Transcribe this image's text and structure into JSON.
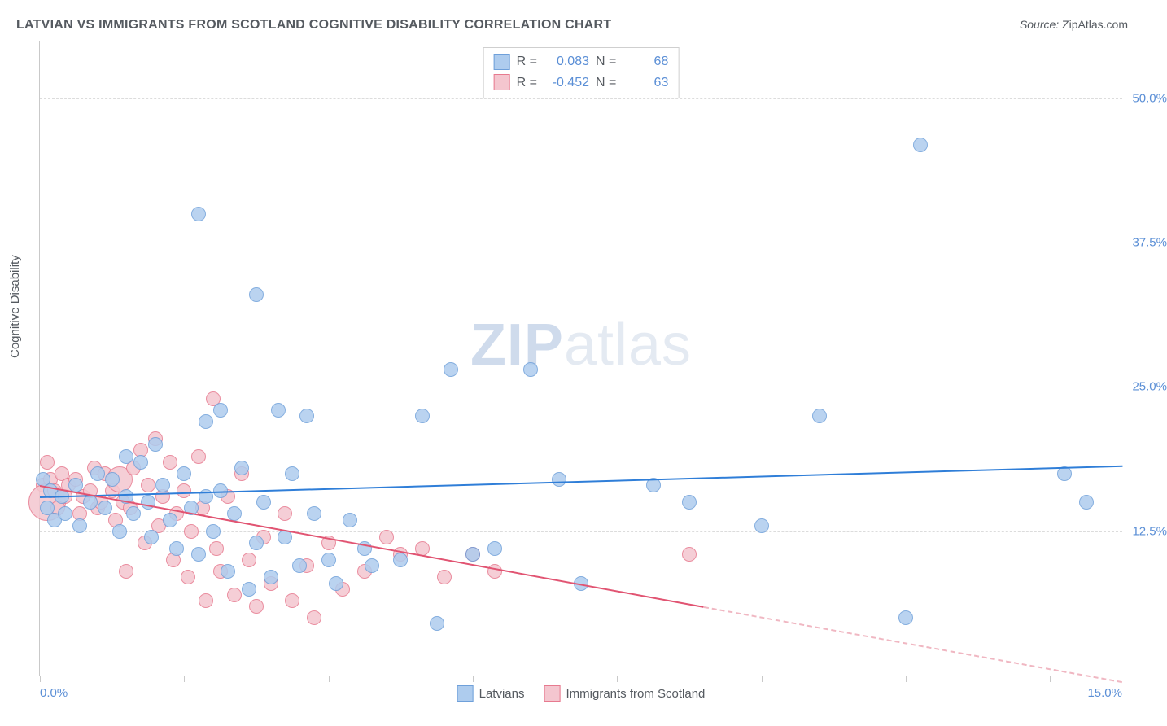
{
  "title": "LATVIAN VS IMMIGRANTS FROM SCOTLAND COGNITIVE DISABILITY CORRELATION CHART",
  "source_label": "Source:",
  "source_value": "ZipAtlas.com",
  "ylabel": "Cognitive Disability",
  "watermark_zip": "ZIP",
  "watermark_rest": "atlas",
  "chart": {
    "type": "scatter",
    "xlim": [
      0,
      15
    ],
    "ylim": [
      0,
      55
    ],
    "xtick_positions": [
      0,
      2,
      4,
      6,
      8,
      10,
      12,
      14
    ],
    "xtick_labels": {
      "0": "0.0%",
      "15": "15.0%"
    },
    "ytick_positions": [
      12.5,
      25.0,
      37.5,
      50.0
    ],
    "ytick_labels": [
      "12.5%",
      "25.0%",
      "37.5%",
      "50.0%"
    ],
    "grid_color": "#dcdcdc",
    "background_color": "#ffffff",
    "axis_color": "#c9c9c9",
    "label_color": "#5b8fd6",
    "title_color": "#555a60",
    "title_fontsize": 16,
    "label_fontsize": 15,
    "point_radius": 8,
    "series": [
      {
        "name": "Latvians",
        "fill": "#aeccee",
        "stroke": "#6fa0da",
        "R": "0.083",
        "N": "68",
        "trend": {
          "x0": 0,
          "y0": 15.5,
          "x1": 15,
          "y1": 18.2,
          "color": "#2f7ed8",
          "dash": false
        },
        "points": [
          [
            0.05,
            17.0
          ],
          [
            0.1,
            14.5
          ],
          [
            0.15,
            16.0
          ],
          [
            0.2,
            13.5
          ],
          [
            0.3,
            15.5
          ],
          [
            0.35,
            14.0
          ],
          [
            0.5,
            16.5
          ],
          [
            0.55,
            13.0
          ],
          [
            0.7,
            15.0
          ],
          [
            0.8,
            17.5
          ],
          [
            0.9,
            14.5
          ],
          [
            1.0,
            17.0
          ],
          [
            1.1,
            12.5
          ],
          [
            1.2,
            19.0
          ],
          [
            1.2,
            15.5
          ],
          [
            1.3,
            14.0
          ],
          [
            1.4,
            18.5
          ],
          [
            1.5,
            15.0
          ],
          [
            1.55,
            12.0
          ],
          [
            1.6,
            20.0
          ],
          [
            1.7,
            16.5
          ],
          [
            1.8,
            13.5
          ],
          [
            1.9,
            11.0
          ],
          [
            2.0,
            17.5
          ],
          [
            2.1,
            14.5
          ],
          [
            2.2,
            10.5
          ],
          [
            2.2,
            40.0
          ],
          [
            2.3,
            22.0
          ],
          [
            2.3,
            15.5
          ],
          [
            2.4,
            12.5
          ],
          [
            2.5,
            16.0
          ],
          [
            2.5,
            23.0
          ],
          [
            2.6,
            9.0
          ],
          [
            2.7,
            14.0
          ],
          [
            2.8,
            18.0
          ],
          [
            2.9,
            7.5
          ],
          [
            3.0,
            11.5
          ],
          [
            3.0,
            33.0
          ],
          [
            3.1,
            15.0
          ],
          [
            3.2,
            8.5
          ],
          [
            3.3,
            23.0
          ],
          [
            3.4,
            12.0
          ],
          [
            3.5,
            17.5
          ],
          [
            3.6,
            9.5
          ],
          [
            3.7,
            22.5
          ],
          [
            3.8,
            14.0
          ],
          [
            4.0,
            10.0
          ],
          [
            4.1,
            8.0
          ],
          [
            4.3,
            13.5
          ],
          [
            4.5,
            11.0
          ],
          [
            4.6,
            9.5
          ],
          [
            5.0,
            10.0
          ],
          [
            5.3,
            22.5
          ],
          [
            5.5,
            4.5
          ],
          [
            5.7,
            26.5
          ],
          [
            6.0,
            10.5
          ],
          [
            6.3,
            11.0
          ],
          [
            6.8,
            26.5
          ],
          [
            7.2,
            17.0
          ],
          [
            7.5,
            8.0
          ],
          [
            8.5,
            16.5
          ],
          [
            9.0,
            15.0
          ],
          [
            10.0,
            13.0
          ],
          [
            10.8,
            22.5
          ],
          [
            12.0,
            5.0
          ],
          [
            12.2,
            46.0
          ],
          [
            14.2,
            17.5
          ],
          [
            14.5,
            15.0
          ]
        ]
      },
      {
        "name": "Immigrants from Scotland",
        "fill": "#f4c6cf",
        "stroke": "#e77a8f",
        "R": "-0.452",
        "N": "63",
        "trend_solid": {
          "x0": 0,
          "y0": 16.5,
          "x1": 9.2,
          "y1": 6.0,
          "color": "#e15472"
        },
        "trend_dashed": {
          "x0": 9.2,
          "y0": 6.0,
          "x1": 15,
          "y1": -0.5,
          "color": "#f0b7c2"
        },
        "points": [
          [
            0.05,
            16.5
          ],
          [
            0.1,
            15.0,
            22
          ],
          [
            0.1,
            18.5
          ],
          [
            0.15,
            17.0
          ],
          [
            0.2,
            16.0
          ],
          [
            0.25,
            14.5
          ],
          [
            0.3,
            17.5
          ],
          [
            0.35,
            15.5
          ],
          [
            0.4,
            16.5
          ],
          [
            0.5,
            17.0
          ],
          [
            0.55,
            14.0
          ],
          [
            0.6,
            15.5
          ],
          [
            0.7,
            16.0
          ],
          [
            0.75,
            18.0
          ],
          [
            0.8,
            14.5
          ],
          [
            0.85,
            15.0
          ],
          [
            0.9,
            17.5
          ],
          [
            1.0,
            16.0
          ],
          [
            1.05,
            13.5
          ],
          [
            1.1,
            17.0,
            15
          ],
          [
            1.15,
            15.0
          ],
          [
            1.2,
            9.0
          ],
          [
            1.25,
            14.5
          ],
          [
            1.3,
            18.0
          ],
          [
            1.4,
            19.5
          ],
          [
            1.45,
            11.5
          ],
          [
            1.5,
            16.5
          ],
          [
            1.6,
            20.5
          ],
          [
            1.65,
            13.0
          ],
          [
            1.7,
            15.5
          ],
          [
            1.8,
            18.5
          ],
          [
            1.85,
            10.0
          ],
          [
            1.9,
            14.0
          ],
          [
            2.0,
            16.0
          ],
          [
            2.05,
            8.5
          ],
          [
            2.1,
            12.5
          ],
          [
            2.2,
            19.0
          ],
          [
            2.25,
            14.5
          ],
          [
            2.3,
            6.5
          ],
          [
            2.4,
            24.0
          ],
          [
            2.45,
            11.0
          ],
          [
            2.5,
            9.0
          ],
          [
            2.6,
            15.5
          ],
          [
            2.7,
            7.0
          ],
          [
            2.8,
            17.5
          ],
          [
            2.9,
            10.0
          ],
          [
            3.0,
            6.0
          ],
          [
            3.1,
            12.0
          ],
          [
            3.2,
            8.0
          ],
          [
            3.4,
            14.0
          ],
          [
            3.5,
            6.5
          ],
          [
            3.7,
            9.5
          ],
          [
            3.8,
            5.0
          ],
          [
            4.0,
            11.5
          ],
          [
            4.2,
            7.5
          ],
          [
            4.5,
            9.0
          ],
          [
            4.8,
            12.0
          ],
          [
            5.0,
            10.5
          ],
          [
            5.3,
            11.0
          ],
          [
            5.6,
            8.5
          ],
          [
            6.0,
            10.5
          ],
          [
            6.3,
            9.0
          ],
          [
            9.0,
            10.5
          ]
        ]
      }
    ]
  },
  "corr_box": {
    "R_label": "R =",
    "N_label": "N ="
  },
  "legend": {
    "series1": "Latvians",
    "series2": "Immigrants from Scotland"
  }
}
